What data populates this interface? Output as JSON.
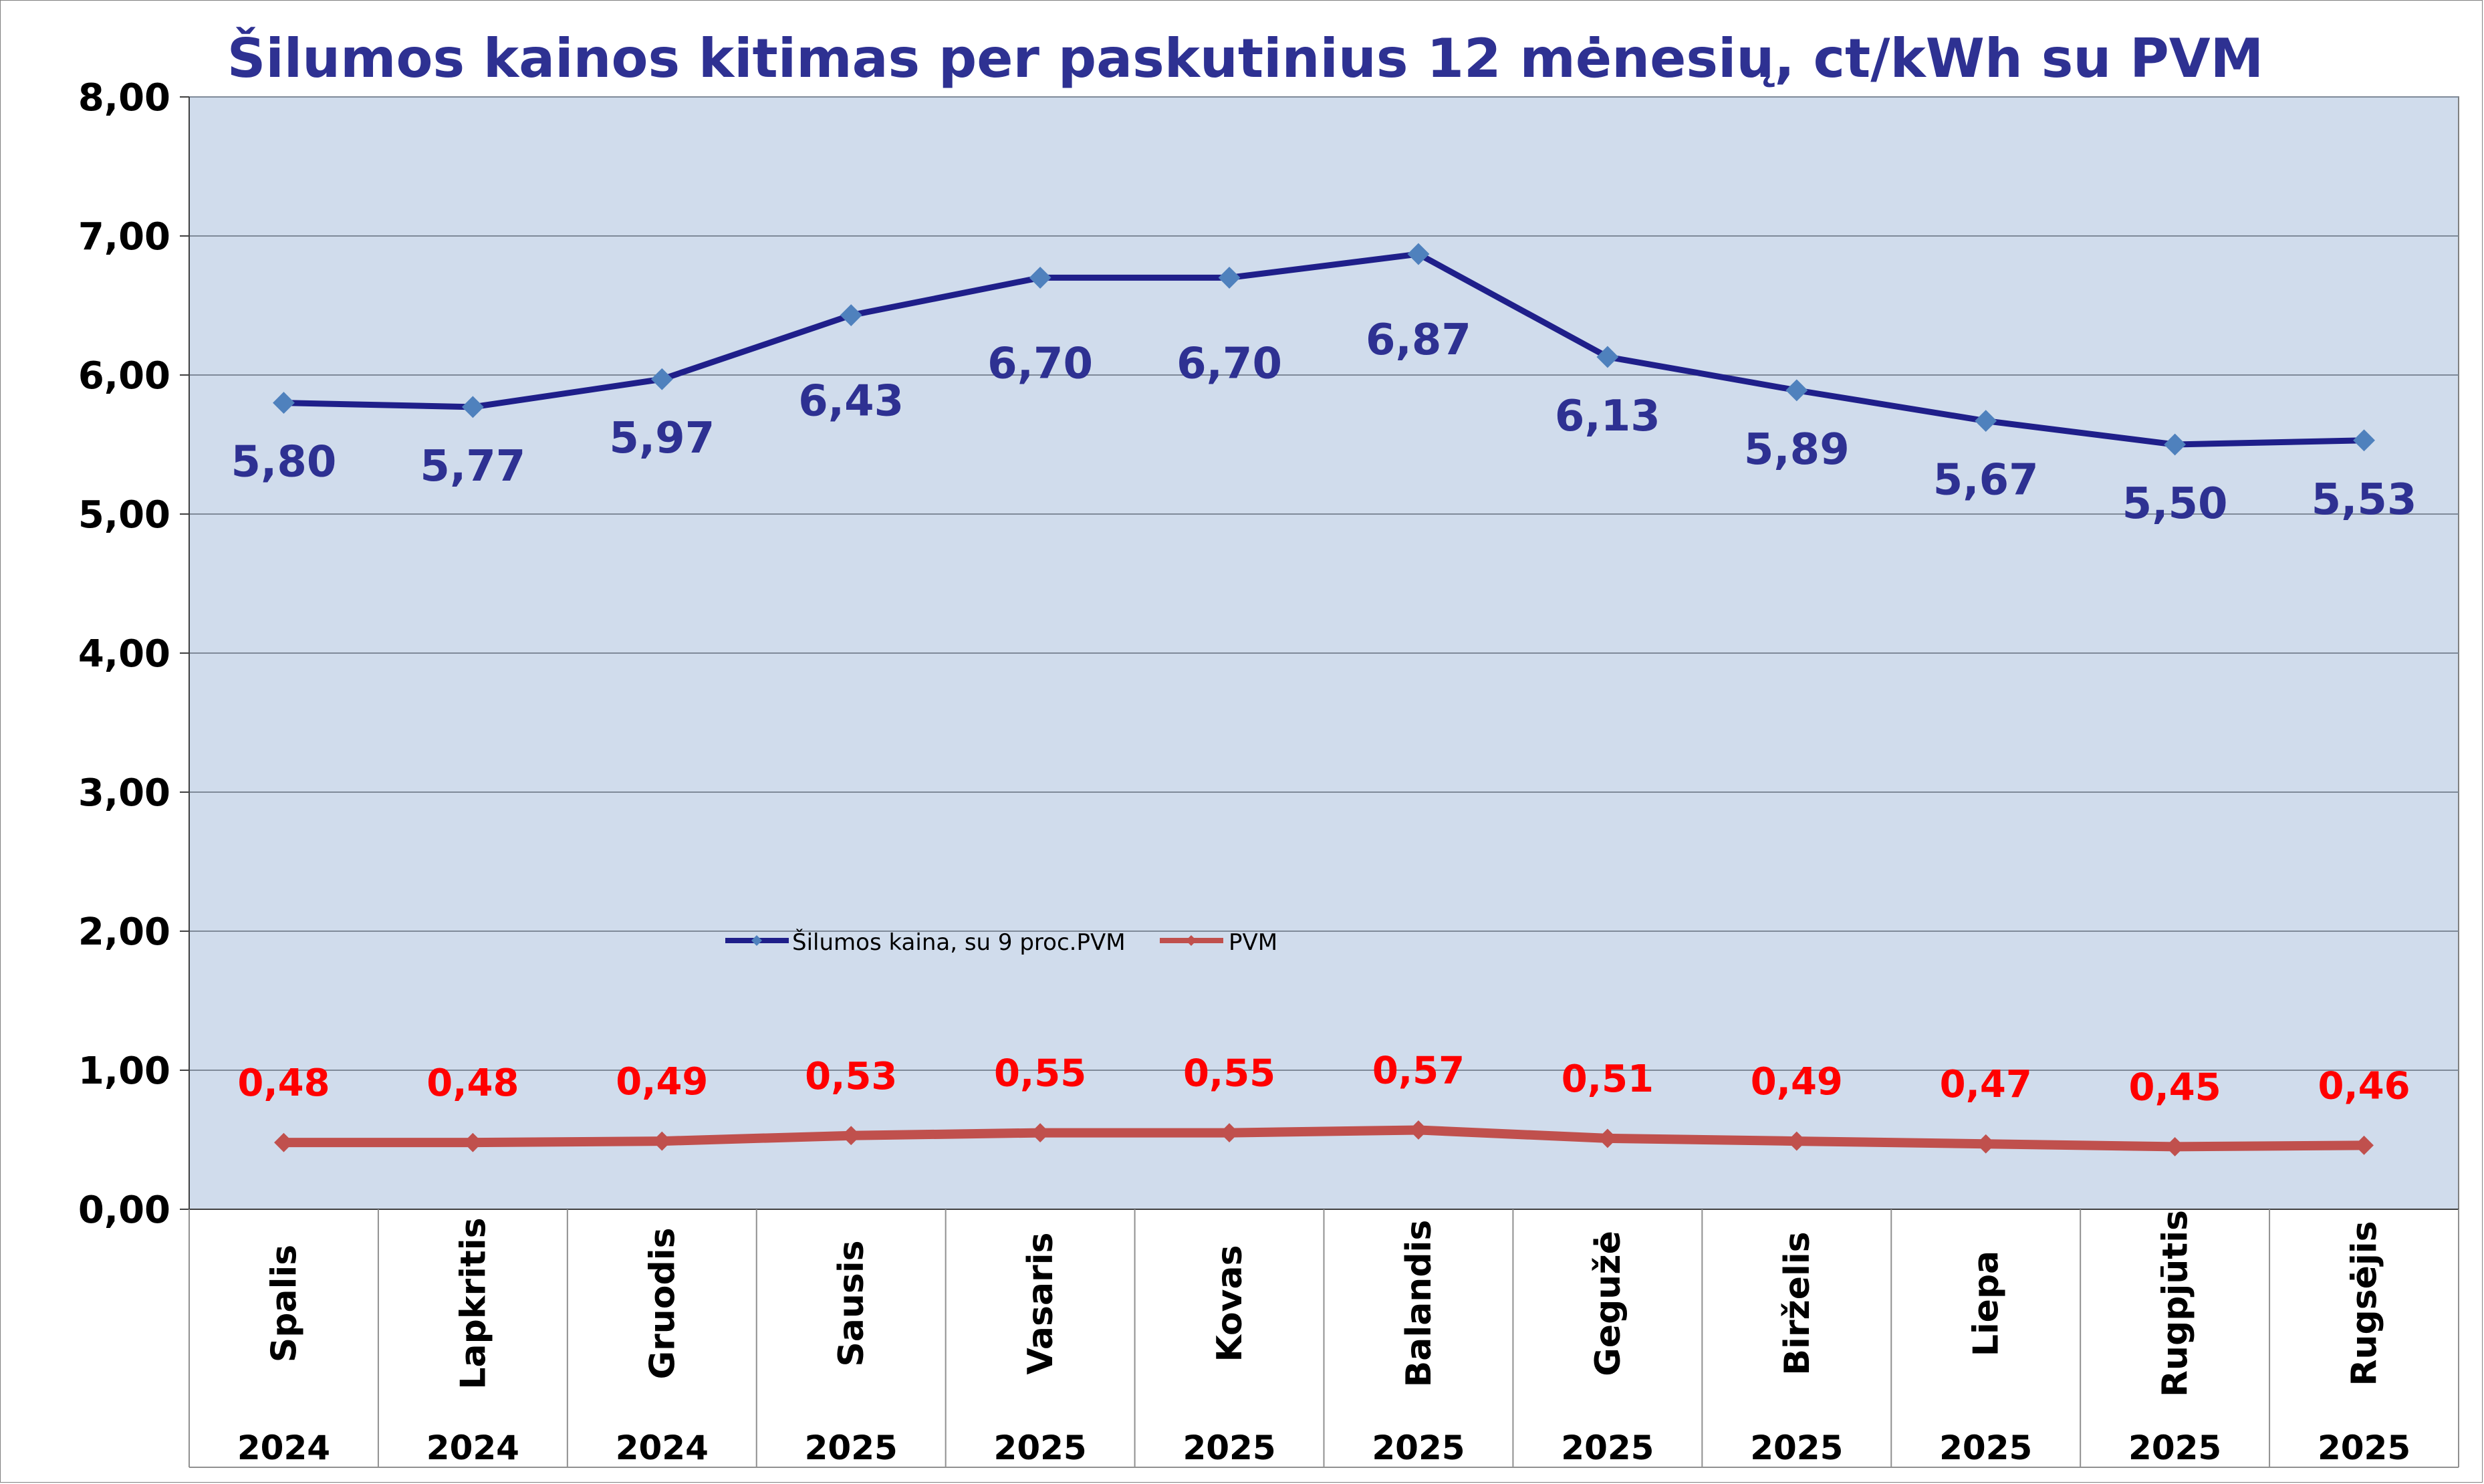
{
  "chart_data": {
    "type": "line",
    "title": "Šilumos kainos kitimas per paskutinius 12 mėnesių, ct/kWh su PVM",
    "categories": [
      "Spalis",
      "Lapkritis",
      "Gruodis",
      "Sausis",
      "Vasaris",
      "Kovas",
      "Balandis",
      "Gegužė",
      "Birželis",
      "Liepa",
      "Rugpjūtis",
      "Rugsėjis"
    ],
    "years": [
      "2024",
      "2024",
      "2024",
      "2025",
      "2025",
      "2025",
      "2025",
      "2025",
      "2025",
      "2025",
      "2025",
      "2025"
    ],
    "ylim": [
      0,
      8
    ],
    "yticks": [
      "0,00",
      "1,00",
      "2,00",
      "3,00",
      "4,00",
      "5,00",
      "6,00",
      "7,00",
      "8,00"
    ],
    "grid": true,
    "legend_position": "center",
    "series": [
      {
        "name": "Šilumos kaina, su 9 proc.PVM",
        "values": [
          5.8,
          5.77,
          5.97,
          6.43,
          6.7,
          6.7,
          6.87,
          6.13,
          5.89,
          5.67,
          5.5,
          5.53
        ],
        "labels": [
          "5,80",
          "5,77",
          "5,97",
          "6,43",
          "6,70",
          "6,70",
          "6,87",
          "6,13",
          "5,89",
          "5,67",
          "5,50",
          "5,53"
        ],
        "color": "#1f1f8a",
        "marker_color": "#4f81bd",
        "label_color": "#2e3192"
      },
      {
        "name": "PVM",
        "values": [
          0.48,
          0.48,
          0.49,
          0.53,
          0.55,
          0.55,
          0.57,
          0.51,
          0.49,
          0.47,
          0.45,
          0.46
        ],
        "labels": [
          "0,48",
          "0,48",
          "0,49",
          "0,53",
          "0,55",
          "0,55",
          "0,57",
          "0,51",
          "0,49",
          "0,47",
          "0,45",
          "0,46"
        ],
        "color": "#c0504d",
        "marker_color": "#c0504d",
        "label_color": "#ff0000"
      }
    ],
    "colors": {
      "plot_background": "#d0dcec",
      "title": "#2e3192",
      "gridline": "#7f8a99"
    }
  }
}
